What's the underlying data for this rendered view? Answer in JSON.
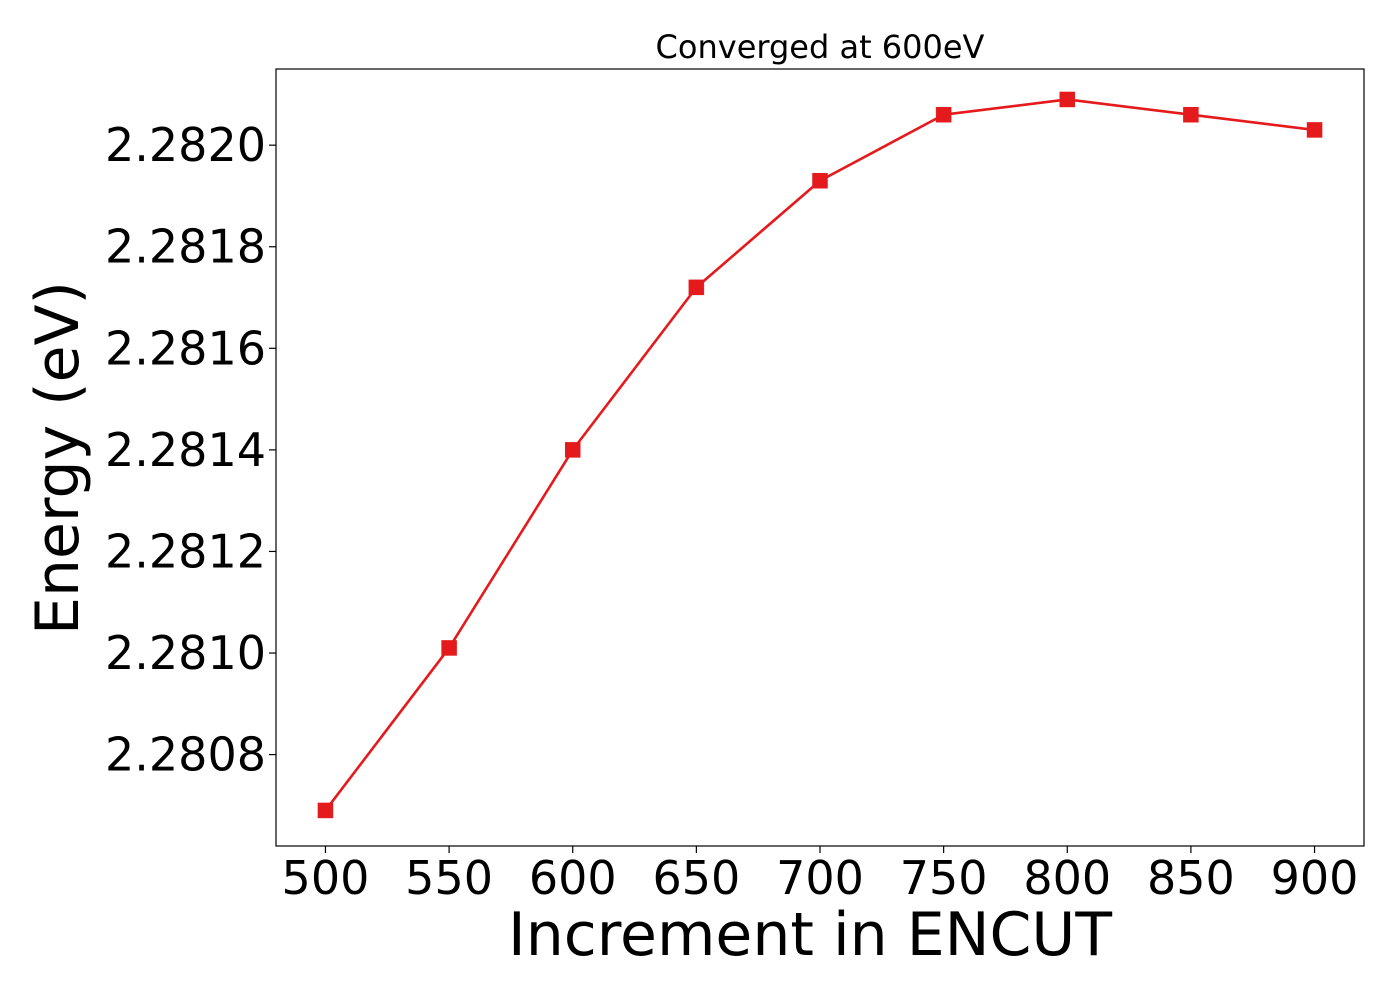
{
  "chart_data": {
    "type": "line",
    "title": "Converged at 600eV",
    "xlabel": "Increment in ENCUT",
    "ylabel": "Energy (eV)",
    "x": [
      500,
      550,
      600,
      650,
      700,
      750,
      800,
      850,
      900
    ],
    "series": [
      {
        "values": [
          2.28069,
          2.28101,
          2.2814,
          2.28172,
          2.28193,
          2.28206,
          2.28209,
          2.28206,
          2.28203
        ],
        "color": "#e41a1c",
        "marker": "square"
      }
    ],
    "xticks": [
      500,
      550,
      600,
      650,
      700,
      750,
      800,
      850,
      900
    ],
    "xtick_labels": [
      "500",
      "550",
      "600",
      "650",
      "700",
      "750",
      "800",
      "850",
      "900"
    ],
    "yticks": [
      2.2808,
      2.281,
      2.2812,
      2.2814,
      2.2816,
      2.2818,
      2.282
    ],
    "ytick_labels": [
      "2.2808",
      "2.2810",
      "2.2812",
      "2.2814",
      "2.2816",
      "2.2818",
      "2.2820"
    ],
    "xlim": [
      480,
      920
    ],
    "ylim": [
      2.28062,
      2.28215
    ],
    "grid": false,
    "legend": false
  }
}
